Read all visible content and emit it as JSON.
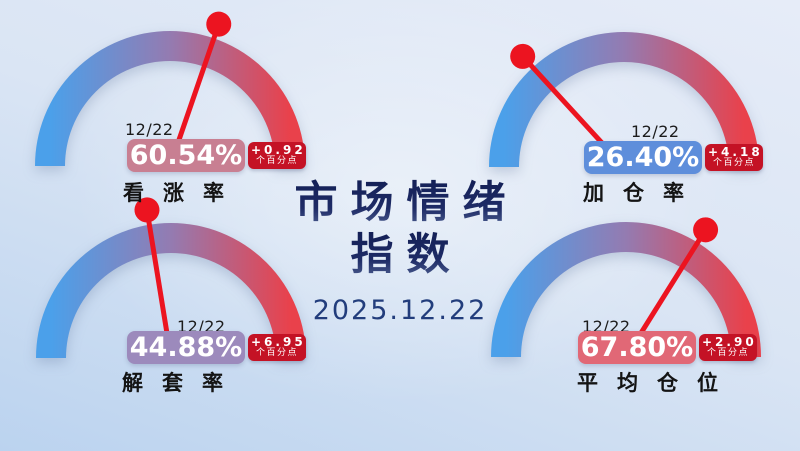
{
  "title": {
    "line1": "市场情绪",
    "line2": "指数",
    "date": "2025.12.22"
  },
  "colors": {
    "arc_gradient_left_blue": "#4BA0EA",
    "arc_gradient_mid_purple": "#947BB1",
    "arc_gradient_right_red": "#E9414B",
    "needle_red": "#EC1420",
    "change_badge_red": "#C41225",
    "title_navy": "#1B2A66",
    "background_blue": "#BBD3EF"
  },
  "gauges": [
    {
      "name": "bullish-rate",
      "date": "12/22",
      "value": "60.54%",
      "value_num": 60.54,
      "change": "+0.92",
      "change_unit": "个百分点",
      "label": "看涨率",
      "badge_bg": "#C87F92"
    },
    {
      "name": "add-position-rate",
      "date": "12/22",
      "value": "26.40%",
      "value_num": 26.4,
      "change": "+4.18",
      "change_unit": "个百分点",
      "label": "加仓率",
      "badge_bg": "#5E8EDB"
    },
    {
      "name": "unwind-rate",
      "date": "12/22",
      "value": "44.88%",
      "value_num": 44.88,
      "change": "+6.95",
      "change_unit": "个百分点",
      "label": "解套率",
      "badge_bg": "#9C8ABC"
    },
    {
      "name": "average-position",
      "date": "12/22",
      "value": "67.80%",
      "value_num": 67.8,
      "change": "+2.90",
      "change_unit": "个百分点",
      "label": "平均仓位",
      "badge_bg": "#E16876"
    }
  ],
  "chart_data": {
    "type": "gauge",
    "title": "市场情绪指数",
    "date": "2025.12.22",
    "value_range": [
      0,
      100
    ],
    "gauges": [
      {
        "label": "看涨率",
        "date": "12/22",
        "value_pct": 60.54,
        "change_pct_points": 0.92
      },
      {
        "label": "加仓率",
        "date": "12/22",
        "value_pct": 26.4,
        "change_pct_points": 4.18
      },
      {
        "label": "解套率",
        "date": "12/22",
        "value_pct": 44.88,
        "change_pct_points": 6.95
      },
      {
        "label": "平均仓位",
        "date": "12/22",
        "value_pct": 67.8,
        "change_pct_points": 2.9
      }
    ],
    "layout": {
      "arc": "semicircle 180deg",
      "gradient": "blue→purple→red",
      "needle": "red with round tip"
    }
  }
}
